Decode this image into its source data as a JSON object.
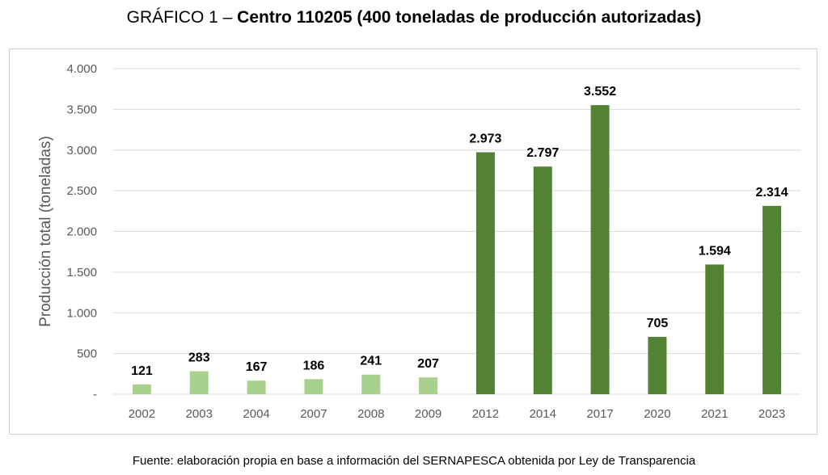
{
  "title_prefix": "GRÁFICO 1 – ",
  "title_main": "Centro 110205 (400 toneladas de producción autorizadas)",
  "source_note": "Fuente: elaboración propia en base a información del SERNAPESCA obtenida por Ley de Transparencia",
  "colors": {
    "light_bar": "#a9d18e",
    "dark_bar": "#548235",
    "grid": "#d9d9d9",
    "axis_text": "#595959"
  },
  "chart_data": {
    "type": "bar",
    "title": "GRÁFICO 1 – Centro 110205 (400 toneladas de producción autorizadas)",
    "ylabel": "Producción total (toneladas)",
    "xlabel": "",
    "ylim": [
      0,
      4000
    ],
    "grid": true,
    "categories": [
      "2002",
      "2003",
      "2004",
      "2007",
      "2008",
      "2009",
      "2012",
      "2014",
      "2017",
      "2020",
      "2021",
      "2023"
    ],
    "values": [
      121,
      283,
      167,
      186,
      241,
      207,
      2973,
      2797,
      3552,
      705,
      1594,
      2314
    ],
    "value_labels": [
      "121",
      "283",
      "167",
      "186",
      "241",
      "207",
      "2.973",
      "2.797",
      "3.552",
      "705",
      "1.594",
      "2.314"
    ],
    "bar_shade": [
      "light",
      "light",
      "light",
      "light",
      "light",
      "light",
      "dark",
      "dark",
      "dark",
      "dark",
      "dark",
      "dark"
    ],
    "yticks": [
      0,
      500,
      1000,
      1500,
      2000,
      2500,
      3000,
      3500,
      4000
    ],
    "ytick_labels": [
      "-",
      "500",
      "1.000",
      "1.500",
      "2.000",
      "2.500",
      "3.000",
      "3.500",
      "4.000"
    ]
  }
}
